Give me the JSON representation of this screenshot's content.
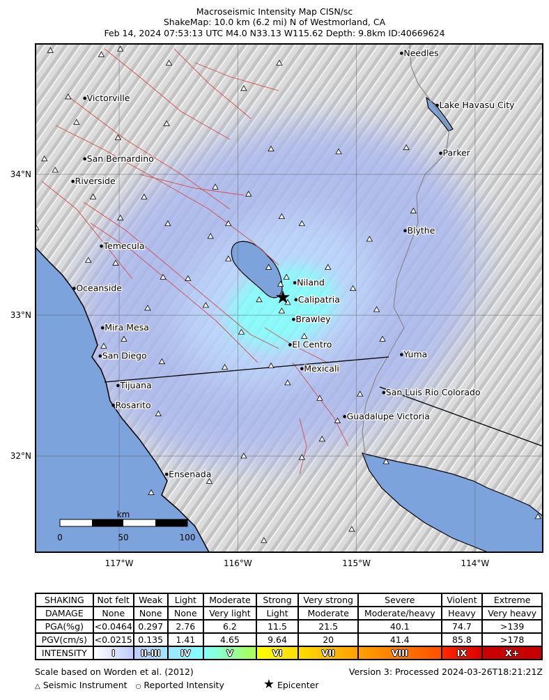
{
  "title": {
    "line1": "Macroseismic Intensity Map CISN/sc",
    "line2": "ShakeMap: 10.0 km (6.2 mi) N of Westmorland, CA",
    "line3": "Feb 14, 2024 07:53:13 UTC M4.0 N33.13 W115.62 Depth: 9.8km ID:40669624"
  },
  "map": {
    "extent": {
      "lon": [
        -117.705,
        -113.43
      ],
      "lat": [
        31.317,
        34.926
      ]
    },
    "lat_ticks": [
      {
        "v": 34,
        "label": "34°N"
      },
      {
        "v": 33,
        "label": "33°N"
      },
      {
        "v": 32,
        "label": "32°N"
      }
    ],
    "lon_ticks": [
      {
        "v": -117,
        "label": "117°W"
      },
      {
        "v": -116,
        "label": "116°W"
      },
      {
        "v": -115,
        "label": "115°W"
      },
      {
        "v": -114,
        "label": "114°W"
      }
    ],
    "colors": {
      "ocean": "#7ca3dc",
      "land": "#d9d9d9",
      "intensity_center": "#80ffff",
      "intensity_outer": "#bfccff"
    },
    "epicenter": {
      "lat": 33.13,
      "lon": -115.62
    },
    "cities": [
      {
        "name": "Needles",
        "lat": 34.86,
        "lon": -114.62
      },
      {
        "name": "Victorville",
        "lat": 34.54,
        "lon": -117.29
      },
      {
        "name": "Lake Havasu City",
        "lat": 34.49,
        "lon": -114.32
      },
      {
        "name": "Parker",
        "lat": 34.15,
        "lon": -114.29
      },
      {
        "name": "San Bernardino",
        "lat": 34.11,
        "lon": -117.29
      },
      {
        "name": "Riverside",
        "lat": 33.95,
        "lon": -117.39
      },
      {
        "name": "Blythe",
        "lat": 33.6,
        "lon": -114.59
      },
      {
        "name": "Temecula",
        "lat": 33.49,
        "lon": -117.15
      },
      {
        "name": "Niland",
        "lat": 33.23,
        "lon": -115.52
      },
      {
        "name": "Oceanside",
        "lat": 33.19,
        "lon": -117.38
      },
      {
        "name": "Calipatria",
        "lat": 33.11,
        "lon": -115.51
      },
      {
        "name": "Brawley",
        "lat": 32.97,
        "lon": -115.53
      },
      {
        "name": "Mira Mesa",
        "lat": 32.91,
        "lon": -117.14
      },
      {
        "name": "El Centro",
        "lat": 32.79,
        "lon": -115.56
      },
      {
        "name": "San Diego",
        "lat": 32.71,
        "lon": -117.16
      },
      {
        "name": "Yuma",
        "lat": 32.72,
        "lon": -114.62
      },
      {
        "name": "Mexicali",
        "lat": 32.62,
        "lon": -115.46
      },
      {
        "name": "Tijuana",
        "lat": 32.5,
        "lon": -117.01
      },
      {
        "name": "San Luis Rio Colorado",
        "lat": 32.45,
        "lon": -114.77
      },
      {
        "name": "Rosarito",
        "lat": 32.36,
        "lon": -117.05
      },
      {
        "name": "Guadalupe Victoria",
        "lat": 32.28,
        "lon": -115.1
      },
      {
        "name": "Ensenada",
        "lat": 31.87,
        "lon": -116.6
      }
    ],
    "stations": [
      [
        34.88,
        -117.58
      ],
      [
        34.85,
        -117.15
      ],
      [
        34.89,
        -116.99
      ],
      [
        34.79,
        -116.58
      ],
      [
        34.79,
        -115.65
      ],
      [
        34.61,
        -115.95
      ],
      [
        34.55,
        -117.43
      ],
      [
        34.37,
        -117.36
      ],
      [
        34.36,
        -116.6
      ],
      [
        34.26,
        -117.01
      ],
      [
        34.18,
        -115.72
      ],
      [
        34.16,
        -115.15
      ],
      [
        34.19,
        -114.58
      ],
      [
        34.11,
        -117.63
      ],
      [
        34.03,
        -117.54
      ],
      [
        33.84,
        -117.22
      ],
      [
        33.84,
        -116.79
      ],
      [
        33.91,
        -116.19
      ],
      [
        33.86,
        -115.91
      ],
      [
        33.74,
        -114.52
      ],
      [
        33.62,
        -117.7
      ],
      [
        33.69,
        -116.99
      ],
      [
        33.65,
        -116.59
      ],
      [
        33.65,
        -116.08
      ],
      [
        33.7,
        -115.63
      ],
      [
        33.65,
        -115.46
      ],
      [
        33.54,
        -114.89
      ],
      [
        33.56,
        -116.23
      ],
      [
        33.39,
        -117.26
      ],
      [
        33.37,
        -117.03
      ],
      [
        33.27,
        -116.63
      ],
      [
        33.26,
        -116.42
      ],
      [
        33.4,
        -116.08
      ],
      [
        33.34,
        -115.74
      ],
      [
        33.27,
        -115.59
      ],
      [
        33.34,
        -115.24
      ],
      [
        33.19,
        -115.03
      ],
      [
        33.04,
        -114.83
      ],
      [
        33.11,
        -115.82
      ],
      [
        33.03,
        -115.63
      ],
      [
        33.07,
        -116.27
      ],
      [
        32.88,
        -115.97
      ],
      [
        32.85,
        -115.44
      ],
      [
        33.05,
        -116.76
      ],
      [
        32.83,
        -116.96
      ],
      [
        32.83,
        -114.78
      ],
      [
        32.67,
        -116.64
      ],
      [
        32.63,
        -116.11
      ],
      [
        32.64,
        -115.72
      ],
      [
        32.52,
        -115.58
      ],
      [
        32.41,
        -115.31
      ],
      [
        32.44,
        -114.97
      ],
      [
        32.25,
        -115.16
      ],
      [
        32.12,
        -115.29
      ],
      [
        32.3,
        -116.67
      ],
      [
        32.0,
        -115.95
      ],
      [
        31.99,
        -115.46
      ],
      [
        31.96,
        -114.75
      ],
      [
        31.82,
        -116.24
      ],
      [
        31.4,
        -115.78
      ],
      [
        31.48,
        -115.04
      ],
      [
        31.57,
        -113.47
      ],
      [
        31.74,
        -116.73
      ],
      [
        32.78,
        -117.13
      ],
      [
        33.22,
        -115.64
      ],
      [
        33.09,
        -115.58
      ]
    ],
    "scale_bar": {
      "unit": "km",
      "labels": [
        "0",
        "50",
        "100"
      ]
    }
  },
  "legend": {
    "rows": [
      {
        "head": "SHAKING",
        "cells": [
          "Not felt",
          "Weak",
          "Light",
          "Moderate",
          "Strong",
          "Very strong",
          "Severe",
          "Violent",
          "Extreme"
        ]
      },
      {
        "head": "DAMAGE",
        "cells": [
          "None",
          "None",
          "None",
          "Very light",
          "Light",
          "Moderate",
          "Moderate/heavy",
          "Heavy",
          "Very heavy"
        ]
      },
      {
        "head": "PGA(%g)",
        "cells": [
          "<0.0464",
          "0.297",
          "2.76",
          "6.2",
          "11.5",
          "21.5",
          "40.1",
          "74.7",
          ">139"
        ]
      },
      {
        "head": "PGV(cm/s)",
        "cells": [
          "<0.0215",
          "0.135",
          "1.41",
          "4.65",
          "9.64",
          "20",
          "41.4",
          "85.8",
          ">178"
        ]
      }
    ],
    "intensity": {
      "head": "INTENSITY",
      "cells": [
        "I",
        "II-III",
        "IV",
        "V",
        "VI",
        "VII",
        "VIII",
        "IX",
        "X+"
      ],
      "colors": [
        [
          "#ffffff",
          "#bfccff"
        ],
        [
          "#bfccff",
          "#a0e6ff"
        ],
        [
          "#a0e6ff",
          "#80ffff"
        ],
        [
          "#80ffff",
          "#aaff50"
        ],
        [
          "#ffff00",
          "#ffdc00"
        ],
        [
          "#ffdc00",
          "#ffa000"
        ],
        [
          "#ffa000",
          "#ff5000"
        ],
        [
          "#ff2800",
          "#dc0000"
        ],
        [
          "#c80000",
          "#c80000"
        ]
      ]
    },
    "scale_note": "Scale based on Worden et al. (2012)",
    "version": "Version 3: Processed 2024-03-26T18:21:21Z",
    "symbols": {
      "instrument": "Seismic Instrument",
      "reported": "Reported Intensity",
      "epicenter": "Epicenter"
    }
  }
}
